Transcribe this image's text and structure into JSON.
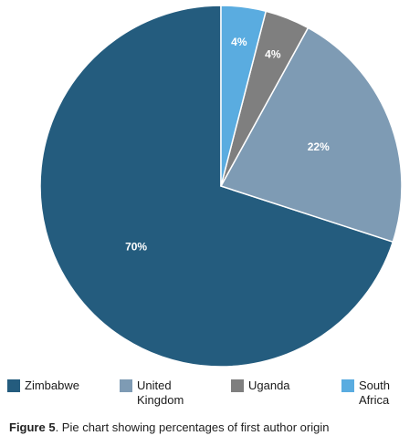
{
  "chart_data": {
    "type": "pie",
    "slices": [
      {
        "label": "Zimbabwe",
        "value": 70,
        "data_label": "70%",
        "color": "#245c7e"
      },
      {
        "label": "United\nKingdom",
        "value": 22,
        "data_label": "22%",
        "color": "#7e9bb4"
      },
      {
        "label": "Uganda",
        "value": 4,
        "data_label": "4%",
        "color": "#7f7f7f"
      },
      {
        "label": "South\nAfrica",
        "value": 4,
        "data_label": "4%",
        "color": "#5aace0"
      }
    ],
    "start": "12 o'clock",
    "direction": "counterclockwise",
    "legend_position": "bottom"
  },
  "caption": {
    "prefix": "Figure 5",
    "text": ". Pie chart showing percentages of first author origin"
  }
}
